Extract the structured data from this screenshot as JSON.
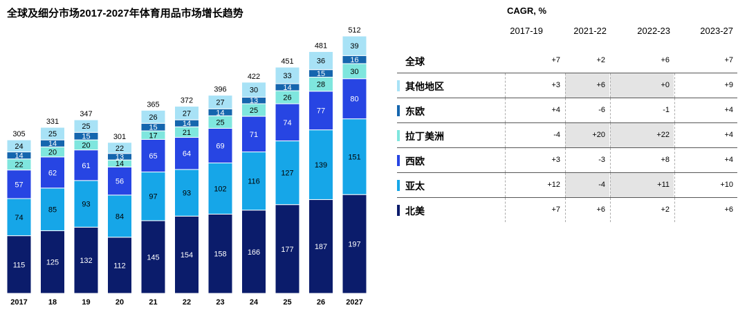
{
  "chart_data": {
    "type": "bar",
    "stacked": true,
    "title": "全球及细分市场2017-2027年体育用品市场增长趋势",
    "categories": [
      "2017",
      "18",
      "19",
      "20",
      "21",
      "22",
      "23",
      "24",
      "25",
      "26",
      "2027"
    ],
    "totals": [
      305,
      331,
      347,
      301,
      365,
      372,
      396,
      422,
      451,
      481,
      512
    ],
    "series": [
      {
        "name": "北美",
        "color": "#0b1c6b",
        "text_color": "#ffffff",
        "values": [
          115,
          125,
          132,
          112,
          145,
          154,
          158,
          166,
          177,
          187,
          197
        ]
      },
      {
        "name": "亚太",
        "color": "#16a6e8",
        "text_color": "#000000",
        "values": [
          74,
          85,
          93,
          84,
          97,
          93,
          102,
          116,
          127,
          139,
          151
        ]
      },
      {
        "name": "西欧",
        "color": "#2745e3",
        "text_color": "#ffffff",
        "values": [
          57,
          62,
          61,
          56,
          65,
          64,
          69,
          71,
          74,
          77,
          80
        ]
      },
      {
        "name": "拉丁美洲",
        "color": "#7fe6de",
        "text_color": "#000000",
        "values": [
          22,
          20,
          20,
          14,
          17,
          21,
          25,
          25,
          26,
          28,
          30
        ]
      },
      {
        "name": "东欧",
        "color": "#1566ae",
        "text_color": "#ffffff",
        "values": [
          14,
          14,
          15,
          13,
          15,
          14,
          14,
          13,
          14,
          15,
          16
        ]
      },
      {
        "name": "其他地区",
        "color": "#a8e2f6",
        "text_color": "#000000",
        "values": [
          24,
          25,
          25,
          22,
          26,
          27,
          27,
          30,
          33,
          36,
          39
        ]
      }
    ],
    "ylim": [
      0,
      520
    ]
  },
  "table": {
    "title": "CAGR, %",
    "columns": [
      "2017-19",
      "2021-22",
      "2022-23",
      "2023-27"
    ],
    "rows": [
      {
        "label": "全球",
        "color": "",
        "values": [
          "+7",
          "+2",
          "+6",
          "+7"
        ]
      },
      {
        "label": "其他地区",
        "color": "#a8e2f6",
        "values": [
          "+3",
          "+6",
          "+0",
          "+9"
        ]
      },
      {
        "label": "东欧",
        "color": "#1566ae",
        "values": [
          "+4",
          "-6",
          "-1",
          "+4"
        ]
      },
      {
        "label": "拉丁美洲",
        "color": "#7fe6de",
        "values": [
          "-4",
          "+20",
          "+22",
          "+4"
        ]
      },
      {
        "label": "西欧",
        "color": "#2745e3",
        "values": [
          "+3",
          "-3",
          "+8",
          "+4"
        ]
      },
      {
        "label": "亚太",
        "color": "#16a6e8",
        "values": [
          "+12",
          "-4",
          "+11",
          "+10"
        ]
      },
      {
        "label": "北美",
        "color": "#0b1c6b",
        "values": [
          "+7",
          "+6",
          "+2",
          "+6"
        ]
      }
    ]
  }
}
